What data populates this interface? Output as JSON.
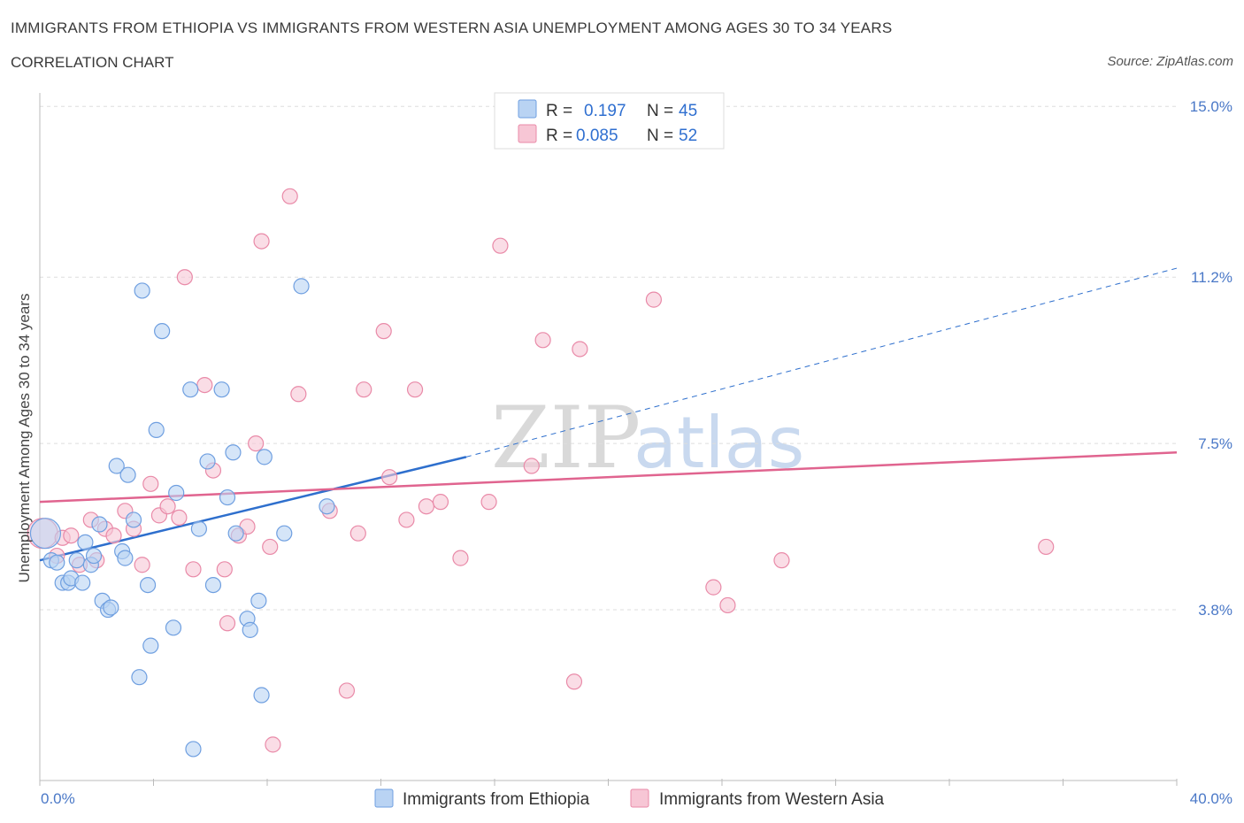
{
  "header": {
    "title": "IMMIGRANTS FROM ETHIOPIA VS IMMIGRANTS FROM WESTERN ASIA UNEMPLOYMENT AMONG AGES 30 TO 34 YEARS",
    "subtitle": "CORRELATION CHART",
    "source": "Source: ZipAtlas.com"
  },
  "watermark": {
    "zip": "ZIP",
    "atlas": "atlas"
  },
  "legend": {
    "r_label": "R =",
    "n_label": "N =",
    "rows": [
      {
        "r": "0.197",
        "n": "45"
      },
      {
        "r": "0.085",
        "n": "52"
      }
    ]
  },
  "colors": {
    "blue_fill": "#b9d3f3",
    "blue_stroke": "#6f9fe0",
    "blue_line": "#2e6fcd",
    "pink_fill": "#f7c6d5",
    "pink_stroke": "#e98aa8",
    "pink_line": "#e0648f",
    "grid": "#dddddd",
    "axis_text": "#4a78c7"
  },
  "chart_data": {
    "type": "scatter",
    "title": "IMMIGRANTS FROM ETHIOPIA VS IMMIGRANTS FROM WESTERN ASIA UNEMPLOYMENT AMONG AGES 30 TO 34 YEARS",
    "ylabel": "Unemployment Among Ages 30 to 34 years",
    "xlabel": "",
    "xlim": [
      0,
      40
    ],
    "ylim": [
      0,
      15.3
    ],
    "x_tick_labels": [
      "0.0%",
      "40.0%"
    ],
    "y_ticks": [
      3.8,
      7.5,
      11.2,
      15.0
    ],
    "y_tick_labels": [
      "3.8%",
      "7.5%",
      "11.2%",
      "15.0%"
    ],
    "grid": true,
    "legend_position": "top-center",
    "series": [
      {
        "name": "Immigrants from Ethiopia",
        "color": "#b9d3f3",
        "trend": {
          "x": [
            0.0,
            15.0
          ],
          "y": [
            4.9,
            7.2
          ],
          "extended_to": [
            40.0,
            11.4
          ]
        },
        "points": [
          {
            "x": 0.2,
            "y": 5.5,
            "big": true
          },
          {
            "x": 0.4,
            "y": 4.9
          },
          {
            "x": 0.6,
            "y": 4.85
          },
          {
            "x": 0.8,
            "y": 4.4
          },
          {
            "x": 1.0,
            "y": 4.4
          },
          {
            "x": 1.1,
            "y": 4.5
          },
          {
            "x": 1.3,
            "y": 4.9
          },
          {
            "x": 1.5,
            "y": 4.4
          },
          {
            "x": 1.6,
            "y": 5.3
          },
          {
            "x": 1.8,
            "y": 4.8
          },
          {
            "x": 1.9,
            "y": 5.0
          },
          {
            "x": 2.1,
            "y": 5.7
          },
          {
            "x": 2.2,
            "y": 4.0
          },
          {
            "x": 2.4,
            "y": 3.8
          },
          {
            "x": 2.5,
            "y": 3.85
          },
          {
            "x": 2.7,
            "y": 7.0
          },
          {
            "x": 2.9,
            "y": 5.1
          },
          {
            "x": 3.1,
            "y": 6.8
          },
          {
            "x": 3.3,
            "y": 5.8
          },
          {
            "x": 3.5,
            "y": 2.3
          },
          {
            "x": 3.6,
            "y": 10.9
          },
          {
            "x": 3.8,
            "y": 4.35
          },
          {
            "x": 3.9,
            "y": 3.0
          },
          {
            "x": 4.1,
            "y": 7.8
          },
          {
            "x": 4.3,
            "y": 10.0
          },
          {
            "x": 4.7,
            "y": 3.4
          },
          {
            "x": 4.8,
            "y": 6.4
          },
          {
            "x": 5.3,
            "y": 8.7
          },
          {
            "x": 5.4,
            "y": 0.7
          },
          {
            "x": 5.6,
            "y": 5.6
          },
          {
            "x": 5.9,
            "y": 7.1
          },
          {
            "x": 6.1,
            "y": 4.35
          },
          {
            "x": 6.4,
            "y": 8.7
          },
          {
            "x": 6.6,
            "y": 6.3
          },
          {
            "x": 6.8,
            "y": 7.3
          },
          {
            "x": 6.9,
            "y": 5.5
          },
          {
            "x": 7.3,
            "y": 3.6
          },
          {
            "x": 7.4,
            "y": 3.35
          },
          {
            "x": 7.7,
            "y": 4.0
          },
          {
            "x": 7.8,
            "y": 1.9
          },
          {
            "x": 7.9,
            "y": 7.2
          },
          {
            "x": 8.6,
            "y": 5.5
          },
          {
            "x": 9.2,
            "y": 11.0
          },
          {
            "x": 10.1,
            "y": 6.1
          },
          {
            "x": 3.0,
            "y": 4.95
          }
        ]
      },
      {
        "name": "Immigrants from Western Asia",
        "color": "#f7c6d5",
        "trend": {
          "x": [
            0.0,
            40.0
          ],
          "y": [
            6.2,
            7.3
          ]
        },
        "points": [
          {
            "x": 0.1,
            "y": 5.5,
            "big": true
          },
          {
            "x": 0.6,
            "y": 5.0
          },
          {
            "x": 0.8,
            "y": 5.4
          },
          {
            "x": 1.1,
            "y": 5.45
          },
          {
            "x": 1.4,
            "y": 4.8
          },
          {
            "x": 1.8,
            "y": 5.8
          },
          {
            "x": 2.0,
            "y": 4.9
          },
          {
            "x": 2.3,
            "y": 5.6
          },
          {
            "x": 2.6,
            "y": 5.45
          },
          {
            "x": 3.0,
            "y": 6.0
          },
          {
            "x": 3.3,
            "y": 5.6
          },
          {
            "x": 3.6,
            "y": 4.8
          },
          {
            "x": 3.9,
            "y": 6.6
          },
          {
            "x": 4.2,
            "y": 5.9
          },
          {
            "x": 4.5,
            "y": 6.1
          },
          {
            "x": 4.9,
            "y": 5.85
          },
          {
            "x": 5.1,
            "y": 11.2
          },
          {
            "x": 5.4,
            "y": 4.7
          },
          {
            "x": 5.8,
            "y": 8.8
          },
          {
            "x": 6.1,
            "y": 6.9
          },
          {
            "x": 6.5,
            "y": 4.7
          },
          {
            "x": 6.6,
            "y": 3.5
          },
          {
            "x": 7.0,
            "y": 5.45
          },
          {
            "x": 7.3,
            "y": 5.65
          },
          {
            "x": 7.6,
            "y": 7.5
          },
          {
            "x": 7.8,
            "y": 12.0
          },
          {
            "x": 8.1,
            "y": 5.2
          },
          {
            "x": 8.2,
            "y": 0.8
          },
          {
            "x": 8.8,
            "y": 13.0
          },
          {
            "x": 9.1,
            "y": 8.6
          },
          {
            "x": 10.2,
            "y": 6.0
          },
          {
            "x": 10.8,
            "y": 2.0
          },
          {
            "x": 11.2,
            "y": 5.5
          },
          {
            "x": 11.4,
            "y": 8.7
          },
          {
            "x": 12.1,
            "y": 10.0
          },
          {
            "x": 12.3,
            "y": 6.75
          },
          {
            "x": 12.9,
            "y": 5.8
          },
          {
            "x": 13.2,
            "y": 8.7
          },
          {
            "x": 13.6,
            "y": 6.1
          },
          {
            "x": 14.1,
            "y": 6.2
          },
          {
            "x": 14.8,
            "y": 4.95
          },
          {
            "x": 15.8,
            "y": 6.2
          },
          {
            "x": 16.2,
            "y": 11.9
          },
          {
            "x": 17.3,
            "y": 7.0
          },
          {
            "x": 17.7,
            "y": 9.8
          },
          {
            "x": 18.8,
            "y": 2.2
          },
          {
            "x": 19.0,
            "y": 9.6
          },
          {
            "x": 21.6,
            "y": 10.7
          },
          {
            "x": 23.7,
            "y": 4.3
          },
          {
            "x": 24.2,
            "y": 3.9
          },
          {
            "x": 26.1,
            "y": 4.9
          },
          {
            "x": 35.4,
            "y": 5.2
          }
        ]
      }
    ]
  },
  "bottom_legend": [
    {
      "label": "Immigrants from Ethiopia"
    },
    {
      "label": "Immigrants from Western Asia"
    }
  ]
}
